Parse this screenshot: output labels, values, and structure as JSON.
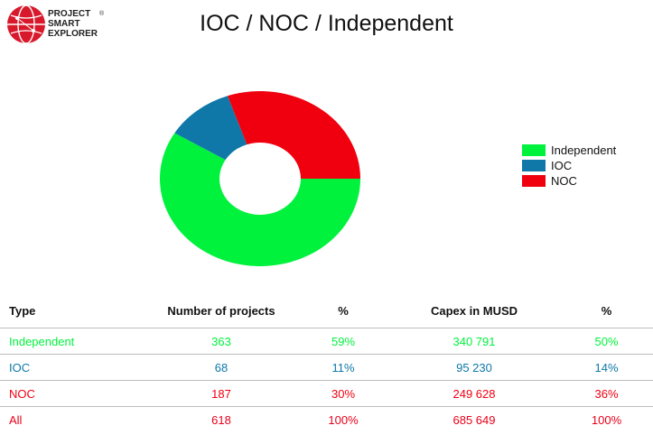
{
  "logo": {
    "line1": "PROJECT",
    "line2": "SMART",
    "line3": "EXPLORER",
    "reg": "®"
  },
  "colors": {
    "Independent": "#00f23d",
    "IOC": "#0f78a8",
    "NOC": "#f0000f"
  },
  "chart_data": {
    "type": "pie",
    "title": "IOC / NOC / Independent",
    "donut": true,
    "legend_position": "right",
    "categories": [
      "Independent",
      "IOC",
      "NOC"
    ],
    "values": [
      363,
      68,
      187
    ]
  },
  "table": {
    "headers": [
      "Type",
      "Number of projects",
      "%",
      "Capex in MUSD",
      "%"
    ],
    "rows": [
      {
        "type": "Independent",
        "projects": "363",
        "projects_pct": "59%",
        "capex": "340 791",
        "capex_pct": "50%",
        "color": "#00f23d"
      },
      {
        "type": "IOC",
        "projects": "68",
        "projects_pct": "11%",
        "capex": "95 230",
        "capex_pct": "14%",
        "color": "#0f78a8"
      },
      {
        "type": "NOC",
        "projects": "187",
        "projects_pct": "30%",
        "capex": "249 628",
        "capex_pct": "36%",
        "color": "#f0000f"
      },
      {
        "type": "All",
        "projects": "618",
        "projects_pct": "100%",
        "capex": "685 649",
        "capex_pct": "100%",
        "color": "#e8001a"
      }
    ]
  }
}
